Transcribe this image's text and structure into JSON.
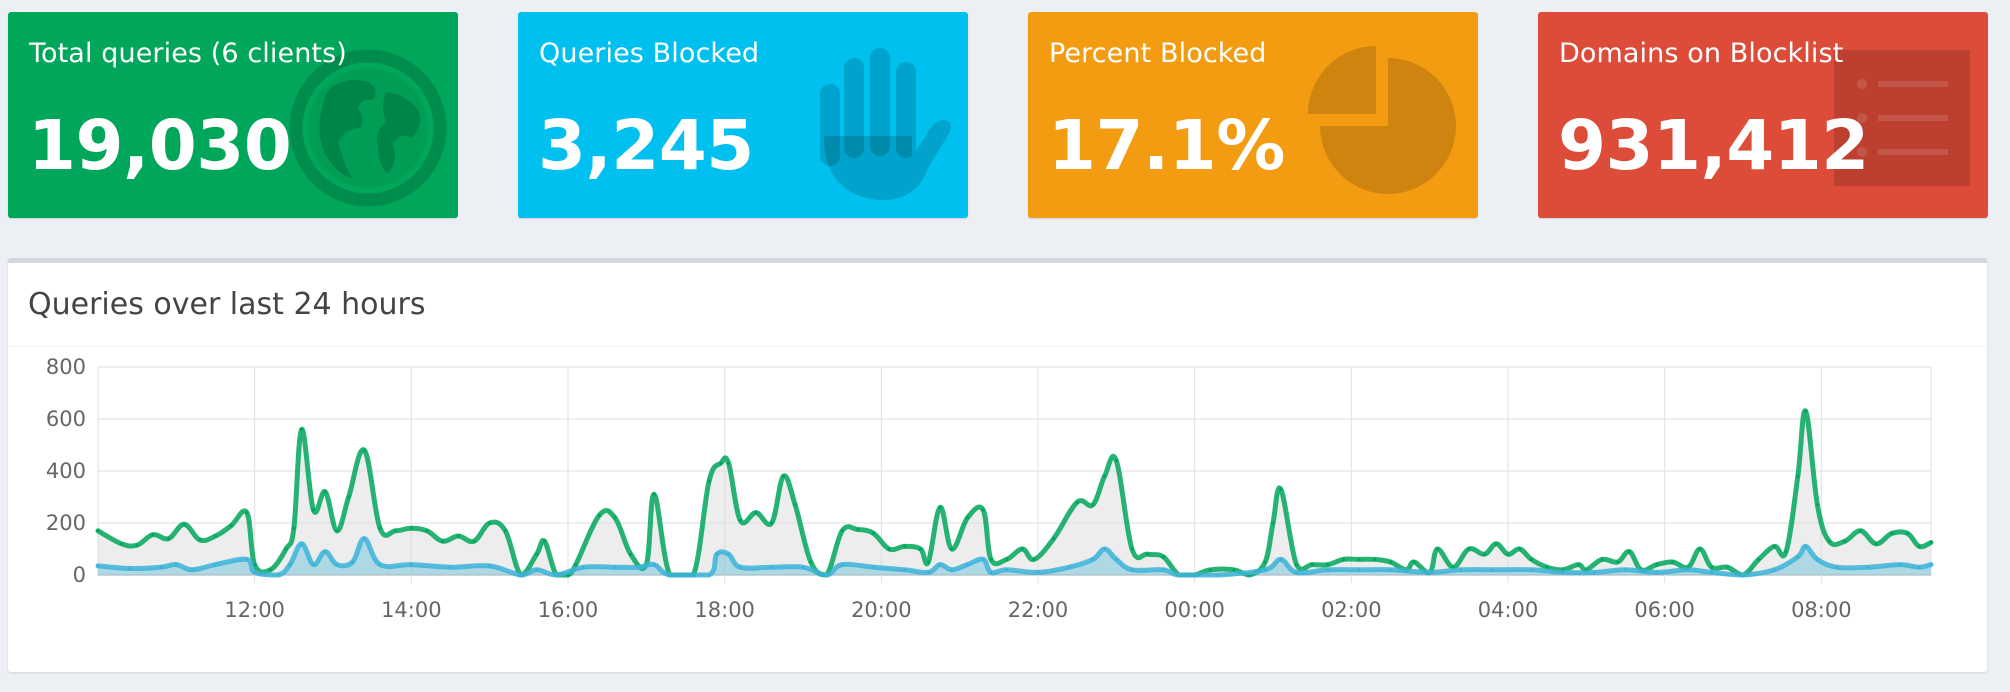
{
  "tiles": [
    {
      "label": "Total queries (6 clients)",
      "value": "19,030",
      "color": "#00a65a",
      "icon": "globe-icon"
    },
    {
      "label": "Queries Blocked",
      "value": "3,245",
      "color": "#00c0ef",
      "icon": "hand-icon"
    },
    {
      "label": "Percent Blocked",
      "value": "17.1%",
      "color": "#f39c12",
      "icon": "pie-chart-icon"
    },
    {
      "label": "Domains on Blocklist",
      "value": "931,412",
      "color": "#dd4b39",
      "icon": "list-icon"
    }
  ],
  "panel": {
    "title": "Queries over last 24 hours"
  },
  "chart_data": {
    "type": "area",
    "title": "Queries over last 24 hours",
    "xlabel": "",
    "ylabel": "",
    "ylim": [
      0,
      800
    ],
    "y_ticks": [
      "0",
      "200",
      "400",
      "600",
      "800"
    ],
    "x_tick_labels": [
      "12:00",
      "14:00",
      "16:00",
      "18:00",
      "20:00",
      "22:00",
      "00:00",
      "02:00",
      "04:00",
      "06:00",
      "08:00"
    ],
    "x_range_hours": [
      10.0,
      33.4
    ],
    "x_tick_hours": [
      12,
      14,
      16,
      18,
      20,
      22,
      24,
      26,
      28,
      30,
      32
    ],
    "grid": true,
    "legend": "none",
    "series": [
      {
        "color": "#00a65a",
        "fill": "rgba(220,220,220,0.5)",
        "points": [
          [
            10.0,
            170
          ],
          [
            10.3,
            120
          ],
          [
            10.5,
            115
          ],
          [
            10.7,
            155
          ],
          [
            10.9,
            140
          ],
          [
            11.1,
            195
          ],
          [
            11.3,
            135
          ],
          [
            11.5,
            150
          ],
          [
            11.7,
            190
          ],
          [
            11.9,
            240
          ],
          [
            12.0,
            40
          ],
          [
            12.2,
            20
          ],
          [
            12.4,
            100
          ],
          [
            12.5,
            180
          ],
          [
            12.6,
            560
          ],
          [
            12.75,
            250
          ],
          [
            12.9,
            320
          ],
          [
            13.05,
            170
          ],
          [
            13.2,
            300
          ],
          [
            13.4,
            480
          ],
          [
            13.6,
            180
          ],
          [
            13.8,
            170
          ],
          [
            14.0,
            180
          ],
          [
            14.2,
            170
          ],
          [
            14.4,
            130
          ],
          [
            14.6,
            150
          ],
          [
            14.8,
            130
          ],
          [
            15.0,
            200
          ],
          [
            15.2,
            170
          ],
          [
            15.4,
            0
          ],
          [
            15.6,
            80
          ],
          [
            15.7,
            130
          ],
          [
            15.85,
            0
          ],
          [
            16.0,
            0
          ],
          [
            16.1,
            40
          ],
          [
            16.4,
            230
          ],
          [
            16.6,
            220
          ],
          [
            16.8,
            80
          ],
          [
            17.0,
            40
          ],
          [
            17.1,
            310
          ],
          [
            17.3,
            0
          ],
          [
            17.6,
            0
          ],
          [
            17.8,
            360
          ],
          [
            17.95,
            430
          ],
          [
            18.05,
            430
          ],
          [
            18.2,
            210
          ],
          [
            18.4,
            240
          ],
          [
            18.6,
            200
          ],
          [
            18.75,
            380
          ],
          [
            18.9,
            270
          ],
          [
            19.1,
            50
          ],
          [
            19.3,
            0
          ],
          [
            19.5,
            170
          ],
          [
            19.7,
            175
          ],
          [
            19.9,
            160
          ],
          [
            20.1,
            100
          ],
          [
            20.3,
            110
          ],
          [
            20.5,
            100
          ],
          [
            20.6,
            50
          ],
          [
            20.75,
            260
          ],
          [
            20.9,
            100
          ],
          [
            21.1,
            220
          ],
          [
            21.3,
            250
          ],
          [
            21.4,
            60
          ],
          [
            21.6,
            60
          ],
          [
            21.8,
            100
          ],
          [
            21.95,
            60
          ],
          [
            22.2,
            140
          ],
          [
            22.5,
            280
          ],
          [
            22.7,
            270
          ],
          [
            22.85,
            380
          ],
          [
            23.0,
            440
          ],
          [
            23.2,
            100
          ],
          [
            23.4,
            80
          ],
          [
            23.6,
            70
          ],
          [
            23.8,
            0
          ],
          [
            24.0,
            0
          ],
          [
            24.2,
            20
          ],
          [
            24.5,
            20
          ],
          [
            24.7,
            0
          ],
          [
            24.9,
            50
          ],
          [
            25.0,
            200
          ],
          [
            25.1,
            330
          ],
          [
            25.3,
            40
          ],
          [
            25.5,
            40
          ],
          [
            25.7,
            40
          ],
          [
            25.9,
            60
          ],
          [
            26.1,
            60
          ],
          [
            26.3,
            60
          ],
          [
            26.5,
            50
          ],
          [
            26.7,
            20
          ],
          [
            26.8,
            50
          ],
          [
            27.0,
            10
          ],
          [
            27.1,
            100
          ],
          [
            27.3,
            30
          ],
          [
            27.5,
            100
          ],
          [
            27.7,
            80
          ],
          [
            27.85,
            120
          ],
          [
            28.0,
            80
          ],
          [
            28.15,
            100
          ],
          [
            28.3,
            60
          ],
          [
            28.5,
            30
          ],
          [
            28.7,
            20
          ],
          [
            28.9,
            40
          ],
          [
            29.0,
            20
          ],
          [
            29.2,
            60
          ],
          [
            29.4,
            50
          ],
          [
            29.55,
            90
          ],
          [
            29.7,
            20
          ],
          [
            29.9,
            40
          ],
          [
            30.1,
            50
          ],
          [
            30.3,
            30
          ],
          [
            30.45,
            100
          ],
          [
            30.6,
            30
          ],
          [
            30.8,
            30
          ],
          [
            31.0,
            0
          ],
          [
            31.2,
            60
          ],
          [
            31.4,
            110
          ],
          [
            31.55,
            90
          ],
          [
            31.7,
            380
          ],
          [
            31.8,
            630
          ],
          [
            31.95,
            270
          ],
          [
            32.1,
            130
          ],
          [
            32.3,
            130
          ],
          [
            32.5,
            170
          ],
          [
            32.7,
            120
          ],
          [
            32.9,
            160
          ],
          [
            33.1,
            160
          ],
          [
            33.25,
            110
          ],
          [
            33.4,
            125
          ]
        ]
      },
      {
        "color": "#3cb3d8",
        "fill": "rgba(60,179,216,0.35)",
        "points": [
          [
            10.0,
            35
          ],
          [
            10.4,
            25
          ],
          [
            10.8,
            30
          ],
          [
            11.0,
            40
          ],
          [
            11.2,
            20
          ],
          [
            11.5,
            40
          ],
          [
            11.9,
            60
          ],
          [
            12.0,
            10
          ],
          [
            12.3,
            0
          ],
          [
            12.45,
            40
          ],
          [
            12.6,
            120
          ],
          [
            12.75,
            40
          ],
          [
            12.9,
            90
          ],
          [
            13.05,
            40
          ],
          [
            13.25,
            50
          ],
          [
            13.4,
            140
          ],
          [
            13.6,
            40
          ],
          [
            14.0,
            40
          ],
          [
            14.5,
            30
          ],
          [
            15.0,
            35
          ],
          [
            15.4,
            0
          ],
          [
            15.6,
            20
          ],
          [
            15.85,
            0
          ],
          [
            16.2,
            30
          ],
          [
            16.6,
            30
          ],
          [
            16.9,
            30
          ],
          [
            17.1,
            40
          ],
          [
            17.3,
            0
          ],
          [
            17.8,
            0
          ],
          [
            17.9,
            80
          ],
          [
            18.05,
            80
          ],
          [
            18.2,
            30
          ],
          [
            18.6,
            30
          ],
          [
            19.0,
            30
          ],
          [
            19.3,
            0
          ],
          [
            19.5,
            40
          ],
          [
            19.9,
            30
          ],
          [
            20.3,
            20
          ],
          [
            20.6,
            10
          ],
          [
            20.75,
            40
          ],
          [
            20.9,
            20
          ],
          [
            21.1,
            40
          ],
          [
            21.3,
            60
          ],
          [
            21.4,
            10
          ],
          [
            21.6,
            20
          ],
          [
            22.0,
            10
          ],
          [
            22.4,
            30
          ],
          [
            22.7,
            60
          ],
          [
            22.85,
            100
          ],
          [
            23.0,
            60
          ],
          [
            23.2,
            20
          ],
          [
            23.6,
            20
          ],
          [
            23.8,
            0
          ],
          [
            24.3,
            0
          ],
          [
            24.9,
            20
          ],
          [
            25.1,
            60
          ],
          [
            25.3,
            10
          ],
          [
            25.7,
            20
          ],
          [
            26.1,
            20
          ],
          [
            26.5,
            20
          ],
          [
            27.0,
            10
          ],
          [
            27.4,
            20
          ],
          [
            27.8,
            20
          ],
          [
            28.3,
            20
          ],
          [
            28.7,
            10
          ],
          [
            29.1,
            10
          ],
          [
            29.5,
            20
          ],
          [
            29.9,
            10
          ],
          [
            30.3,
            20
          ],
          [
            30.6,
            10
          ],
          [
            31.0,
            0
          ],
          [
            31.4,
            20
          ],
          [
            31.7,
            70
          ],
          [
            31.8,
            110
          ],
          [
            31.95,
            60
          ],
          [
            32.2,
            30
          ],
          [
            32.6,
            30
          ],
          [
            33.0,
            40
          ],
          [
            33.25,
            30
          ],
          [
            33.4,
            40
          ]
        ]
      }
    ]
  }
}
